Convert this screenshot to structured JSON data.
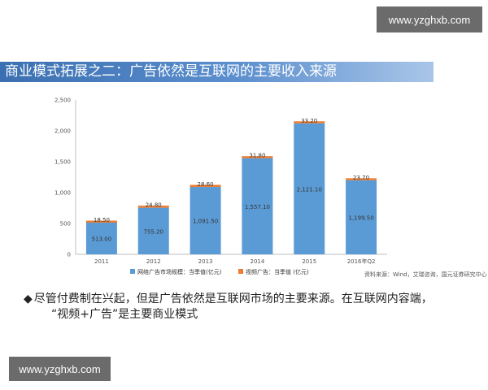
{
  "watermarks": {
    "top": "www.yzghxb.com",
    "bottom": "www.yzghxb.com"
  },
  "slide": {
    "title": "商业模式拓展之二：广告依然是互联网的主要收入来源",
    "source": "资料来源：Wind，艾瑞咨询，国元证券研究中心",
    "bullet_symbol": "◆",
    "bullet_line1": "尽管付费制在兴起，但是广告依然是互联网市场的主要来源。在互联网内容端，",
    "bullet_line2": "“视频+广告”是主要商业模式"
  },
  "colors": {
    "series1": "#5b9bd5",
    "series2": "#ed7d31",
    "title_bar": "#3a6fb1"
  },
  "chart_data": {
    "type": "bar",
    "stacked": true,
    "categories": [
      "2011",
      "2012",
      "2013",
      "2014",
      "2015",
      "2016年Q2"
    ],
    "series": [
      {
        "name": "网络广告市场规模：当季值(亿元)",
        "values": [
          513.0,
          755.2,
          1091.5,
          1557.1,
          2121.1,
          1199.5
        ],
        "labels": [
          "513.00",
          "755.20",
          "1,091.50",
          "1,557.10",
          "2,121.10",
          "1,199.50"
        ]
      },
      {
        "name": "视频广告：当季值 (亿元)",
        "values": [
          18.5,
          24.8,
          28.6,
          31.8,
          33.2,
          23.7
        ],
        "labels": [
          "18.50",
          "24.80",
          "28.60",
          "31.80",
          "33.20",
          "23.70"
        ]
      }
    ],
    "yticks": [
      "0",
      "500",
      "1,000",
      "1,500",
      "2,000",
      "2,500"
    ],
    "ylim": [
      0,
      2500
    ],
    "legend_position": "bottom"
  }
}
